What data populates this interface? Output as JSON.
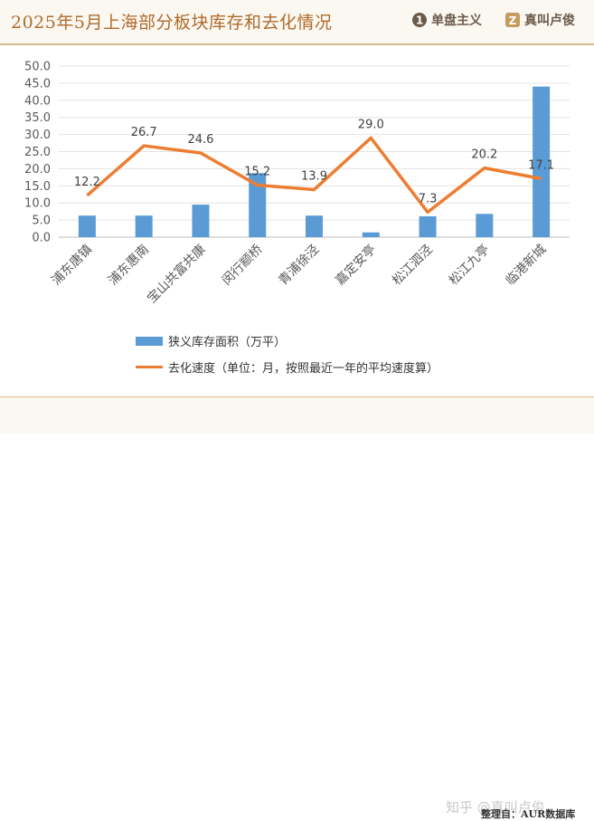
{
  "header": {
    "title": "2025年5月上海部分板块库存和去化情况",
    "brand1": "单盘主义",
    "brand2": "真叫卢俊"
  },
  "footer": {
    "watermark": "知乎 @真叫卢俊",
    "source": "整理自：AUR数据库"
  },
  "colors": {
    "bar": "#5b9bd5",
    "line": "#ed7d31",
    "accent": "#b06a2a"
  },
  "chart_data": {
    "type": "bar",
    "categories": [
      "浦东唐镇",
      "浦东惠南",
      "宝山共富共康",
      "闵行颛桥",
      "青浦徐泾",
      "嘉定安亭",
      "松江泗泾",
      "松江九亭",
      "临港新城"
    ],
    "series": [
      {
        "name": "狭义库存面积（万平）",
        "type": "bar",
        "values": [
          6.3,
          6.3,
          9.5,
          18.7,
          6.3,
          1.4,
          6.1,
          6.8,
          44.0
        ]
      },
      {
        "name": "去化速度（单位：月，按照最近一年的平均速度算）",
        "type": "line",
        "values": [
          12.2,
          26.7,
          24.6,
          15.2,
          13.9,
          29.0,
          7.3,
          20.2,
          17.1
        ]
      }
    ],
    "line_labels": [
      "12.2",
      "26.7",
      "24.6",
      "15.2",
      "13.9",
      "29.0",
      "7.3",
      "20.2",
      "17.1"
    ],
    "yticks": [
      "0.0",
      "5.0",
      "10.0",
      "15.0",
      "20.0",
      "25.0",
      "30.0",
      "35.0",
      "40.0",
      "45.0",
      "50.0"
    ],
    "ylim": [
      0,
      50
    ],
    "grid": true,
    "legend_position": "bottom"
  }
}
